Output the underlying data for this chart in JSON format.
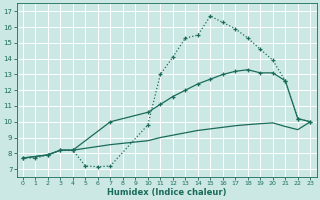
{
  "xlabel": "Humidex (Indice chaleur)",
  "bg_color": "#cce8e4",
  "grid_color": "#b0d8d2",
  "line_color": "#1a6b5a",
  "xlim": [
    -0.5,
    23.5
  ],
  "ylim": [
    6.5,
    17.5
  ],
  "yticks": [
    7,
    8,
    9,
    10,
    11,
    12,
    13,
    14,
    15,
    16,
    17
  ],
  "xticks": [
    0,
    1,
    2,
    3,
    4,
    5,
    6,
    7,
    8,
    9,
    10,
    11,
    12,
    13,
    14,
    15,
    16,
    17,
    18,
    19,
    20,
    21,
    22,
    23
  ],
  "curve1_x": [
    0,
    1,
    2,
    3,
    4,
    5,
    6,
    7,
    10,
    11,
    12,
    13,
    14,
    15,
    16,
    17,
    18,
    19,
    20,
    21,
    22,
    23
  ],
  "curve1_y": [
    7.7,
    7.7,
    7.9,
    8.2,
    8.2,
    7.2,
    7.15,
    7.2,
    9.8,
    13.0,
    14.1,
    15.3,
    15.5,
    16.7,
    16.3,
    15.9,
    15.3,
    14.6,
    13.9,
    12.6,
    10.2,
    10.0
  ],
  "curve2_x": [
    0,
    2,
    3,
    4,
    7,
    10,
    11,
    12,
    13,
    14,
    15,
    16,
    17,
    18,
    19,
    20,
    21,
    22,
    23
  ],
  "curve2_y": [
    7.7,
    7.9,
    8.2,
    8.2,
    10.0,
    10.6,
    11.1,
    11.6,
    12.0,
    12.4,
    12.7,
    13.0,
    13.2,
    13.3,
    13.1,
    13.1,
    12.6,
    10.2,
    10.0
  ],
  "curve3_x": [
    0,
    2,
    3,
    4,
    7,
    10,
    11,
    12,
    13,
    14,
    15,
    16,
    17,
    18,
    19,
    20,
    21,
    22,
    23
  ],
  "curve3_y": [
    7.7,
    7.9,
    8.2,
    8.2,
    8.55,
    8.8,
    9.0,
    9.15,
    9.3,
    9.45,
    9.55,
    9.65,
    9.75,
    9.82,
    9.88,
    9.93,
    9.7,
    9.5,
    10.0
  ]
}
